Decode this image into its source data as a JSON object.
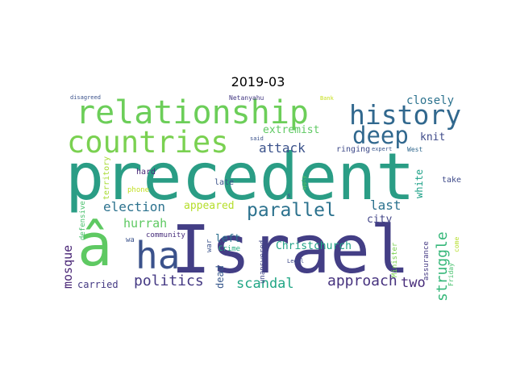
{
  "title": "2019-03",
  "words": [
    {
      "text": "precedent",
      "color": "#2a9d85"
    },
    {
      "text": "Israel",
      "color": "#433e85"
    },
    {
      "text": "relationship",
      "color": "#6cce59"
    },
    {
      "text": "countries",
      "color": "#7ad151"
    },
    {
      "text": "history",
      "color": "#31688e"
    },
    {
      "text": "deep",
      "color": "#31688e"
    },
    {
      "text": "â",
      "color": "#5ec962"
    },
    {
      "text": "ha",
      "color": "#3b528b"
    },
    {
      "text": "parallel",
      "color": "#2c728e"
    },
    {
      "text": "struggle",
      "color": "#35b779"
    },
    {
      "text": "politics",
      "color": "#443983"
    },
    {
      "text": "approach",
      "color": "#46327e"
    },
    {
      "text": "scandal",
      "color": "#21a685"
    },
    {
      "text": "election",
      "color": "#2c728e"
    },
    {
      "text": "hurrah",
      "color": "#5ec962"
    },
    {
      "text": "attack",
      "color": "#3b528b"
    },
    {
      "text": "last",
      "color": "#2c728e"
    },
    {
      "text": "two",
      "color": "#472c7a"
    },
    {
      "text": "mosque",
      "color": "#482475"
    },
    {
      "text": "closely",
      "color": "#2c728e"
    },
    {
      "text": "extremist",
      "color": "#5ec962"
    },
    {
      "text": "knit",
      "color": "#3e4a89"
    },
    {
      "text": "appeared",
      "color": "#b5de2b"
    },
    {
      "text": "left",
      "color": "#2d708e"
    },
    {
      "text": "Christchurch",
      "color": "#20a386"
    },
    {
      "text": "city",
      "color": "#414487"
    },
    {
      "text": "white",
      "color": "#1fa188"
    },
    {
      "text": "carried",
      "color": "#443983"
    },
    {
      "text": "dead",
      "color": "#38588c"
    },
    {
      "text": "ringing",
      "color": "#3e4a89"
    },
    {
      "text": "expert",
      "color": "#39568c"
    },
    {
      "text": "West",
      "color": "#31688e"
    },
    {
      "text": "late",
      "color": "#3b528b"
    },
    {
      "text": "hard",
      "color": "#482878"
    },
    {
      "text": "phone",
      "color": "#c2df23"
    },
    {
      "text": "take",
      "color": "#3e4a89"
    },
    {
      "text": "territory",
      "color": "#a8db34"
    },
    {
      "text": "community",
      "color": "#472d7b"
    },
    {
      "text": "Crime",
      "color": "#27ad81"
    },
    {
      "text": "war",
      "color": "#3b528b"
    },
    {
      "text": "wa",
      "color": "#3b528b"
    },
    {
      "text": "defensive",
      "color": "#4ac16d"
    },
    {
      "text": "unanswered",
      "color": "#414487"
    },
    {
      "text": "Legal",
      "color": "#3e4a89"
    },
    {
      "text": "Minister",
      "color": "#7ad151"
    },
    {
      "text": "assurance",
      "color": "#443983"
    },
    {
      "text": "Friday",
      "color": "#48c16e"
    },
    {
      "text": "come",
      "color": "#b5de2b"
    },
    {
      "text": "apply",
      "color": "#5ec962"
    },
    {
      "text": "said",
      "color": "#3b528b"
    },
    {
      "text": "s",
      "color": "#3b528b"
    },
    {
      "text": "disagreed",
      "color": "#3b528b"
    },
    {
      "text": "Netanyahu",
      "color": "#443983"
    },
    {
      "text": "Bank",
      "color": "#c8e020"
    }
  ]
}
